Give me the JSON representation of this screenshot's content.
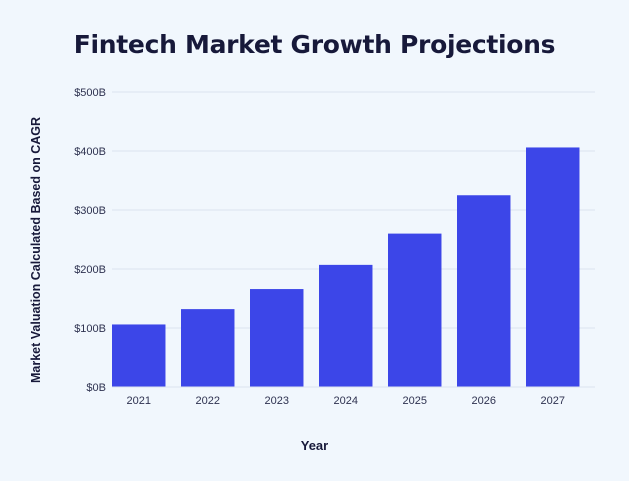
{
  "chart_data": {
    "type": "bar",
    "title": "Fintech Market Growth Projections",
    "xlabel": "Year",
    "ylabel": "Market Valuation Calculated Based on CAGR",
    "categories": [
      "2021",
      "2022",
      "2023",
      "2024",
      "2025",
      "2026",
      "2027"
    ],
    "values": [
      106,
      132,
      166,
      207,
      260,
      325,
      406
    ],
    "ylim": [
      0,
      500
    ],
    "yticks": [
      0,
      100,
      200,
      300,
      400,
      500
    ],
    "ytick_labels": [
      "$0B",
      "$100B",
      "$200B",
      "$300B",
      "$400B",
      "$500B"
    ],
    "grid": true,
    "legend": "none",
    "colors": {
      "bar": "#3c46e8",
      "grid": "#dbe3ee",
      "background": "#f1f7fd",
      "text": "#17193a"
    }
  }
}
